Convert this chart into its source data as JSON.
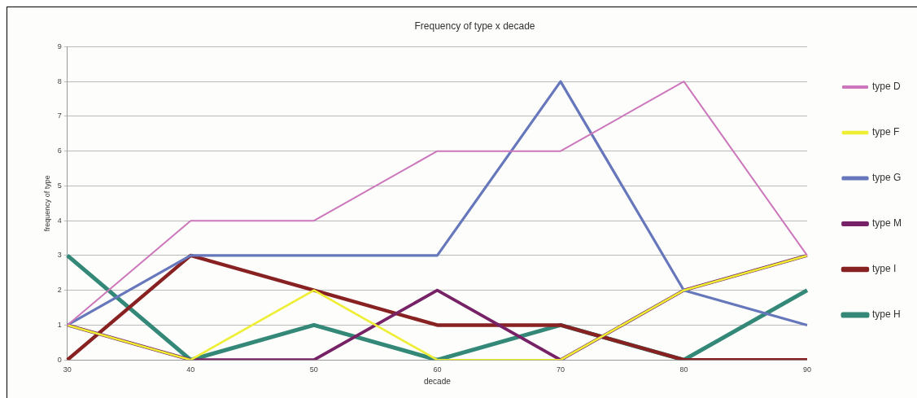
{
  "chart_data": {
    "type": "line",
    "title": "Frequency of type x decade",
    "xlabel": "decade",
    "ylabel": "frequency of type",
    "categories": [
      "30",
      "40",
      "50",
      "60",
      "70",
      "80",
      "90"
    ],
    "series": [
      {
        "name": "type D",
        "color": "#cc77bb",
        "values": [
          1,
          4,
          4,
          6,
          6,
          8,
          3
        ]
      },
      {
        "name": "type F",
        "color": "#eeee33",
        "values": [
          1,
          0,
          2,
          0,
          0,
          2,
          3
        ]
      },
      {
        "name": "type G",
        "color": "#6677bb",
        "values": [
          1,
          3,
          3,
          3,
          8,
          2,
          1
        ]
      },
      {
        "name": "type M",
        "color": "#772266",
        "values": [
          1,
          0,
          0,
          2,
          0,
          2,
          3
        ]
      },
      {
        "name": "type I",
        "color": "#882222",
        "values": [
          0,
          3,
          2,
          1,
          1,
          0,
          0
        ]
      },
      {
        "name": "type H",
        "color": "#338877",
        "values": [
          3,
          0,
          1,
          0,
          1,
          0,
          2
        ]
      }
    ],
    "ylim": [
      0,
      9
    ],
    "yticks": [
      0,
      1,
      2,
      3,
      4,
      5,
      6,
      7,
      8,
      9
    ],
    "grid": "y",
    "legend": "right",
    "marker": "none",
    "line_style": "solid"
  }
}
